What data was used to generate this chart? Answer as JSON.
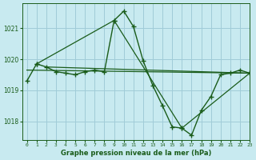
{
  "title": "Graphe pression niveau de la mer (hPa)",
  "background_color": "#c8eaf0",
  "grid_color": "#a0ccd8",
  "line_color": "#1a5c1a",
  "marker_color": "#1a5c1a",
  "xlim": [
    -0.5,
    23
  ],
  "ylim": [
    1017.4,
    1021.8
  ],
  "yticks": [
    1018,
    1019,
    1020,
    1021
  ],
  "ytick_top": 1021,
  "xticks": [
    0,
    1,
    2,
    3,
    4,
    5,
    6,
    7,
    8,
    9,
    10,
    11,
    12,
    13,
    14,
    15,
    16,
    17,
    18,
    19,
    20,
    21,
    22,
    23
  ],
  "series": [
    {
      "x": [
        0,
        1,
        2,
        3,
        4,
        5,
        6,
        7,
        8,
        9,
        10,
        11,
        12,
        13,
        14,
        15,
        16,
        17,
        18,
        19,
        20,
        21,
        22,
        23
      ],
      "y": [
        1019.3,
        1019.85,
        1019.75,
        1019.6,
        1019.55,
        1019.5,
        1019.6,
        1019.65,
        1019.6,
        1021.25,
        1021.55,
        1021.05,
        1019.95,
        1019.15,
        1018.5,
        1017.82,
        1017.78,
        1017.55,
        1018.35,
        1018.8,
        1019.5,
        1019.55,
        1019.65,
        1019.55
      ],
      "marker": "+",
      "markersize": 5,
      "linewidth": 1.0
    },
    {
      "x": [
        1,
        9,
        16,
        23
      ],
      "y": [
        1019.85,
        1021.25,
        1017.78,
        1019.55
      ],
      "marker": "+",
      "markersize": 5,
      "linewidth": 0.9
    },
    {
      "x": [
        0,
        23
      ],
      "y": [
        1019.65,
        1019.55
      ],
      "marker": null,
      "markersize": 0,
      "linewidth": 0.9
    },
    {
      "x": [
        2,
        23
      ],
      "y": [
        1019.75,
        1019.55
      ],
      "marker": null,
      "markersize": 0,
      "linewidth": 0.9
    }
  ]
}
